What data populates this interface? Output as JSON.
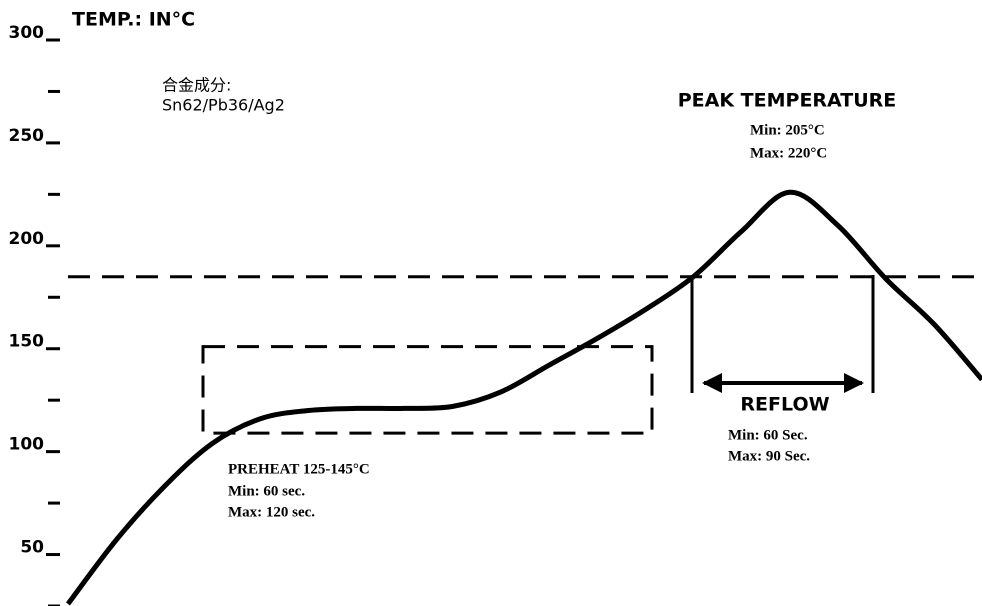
{
  "chart_data": {
    "type": "line",
    "title": "TEMP.: IN°C",
    "categories": [
      null,
      null,
      null,
      null,
      null,
      null,
      null,
      null,
      null,
      null,
      null,
      null,
      null,
      null,
      null,
      null,
      null,
      null,
      null,
      null
    ],
    "values": [
      26,
      57,
      83,
      104,
      116,
      120,
      121,
      121,
      122,
      129,
      142,
      155,
      169,
      185,
      207,
      226,
      210,
      184,
      162,
      135
    ],
    "color": "#000000",
    "ylim": [
      25,
      300
    ],
    "yticks": [
      50,
      100,
      150,
      200,
      250,
      300
    ],
    "minor_yticks": [
      25,
      75,
      125,
      175,
      225,
      275
    ],
    "threshold": 185,
    "preheat_box": [
      109,
      151
    ],
    "annotations": {
      "alloy_label": "合金成分:",
      "alloy": "Sn62/Pb36/Ag2",
      "peak_title": "PEAK TEMPERATURE",
      "peak_min": "Min:  205°C",
      "peak_max": "Max:  220°C",
      "reflow_title": "REFLOW",
      "reflow_min": "Min:  60 Sec.",
      "reflow_max": "Max:  90 Sec.",
      "preheat_title": "PREHEAT  125-145°C",
      "preheat_min": "Min:  60 sec.",
      "preheat_max": "Max:  120 sec."
    }
  }
}
